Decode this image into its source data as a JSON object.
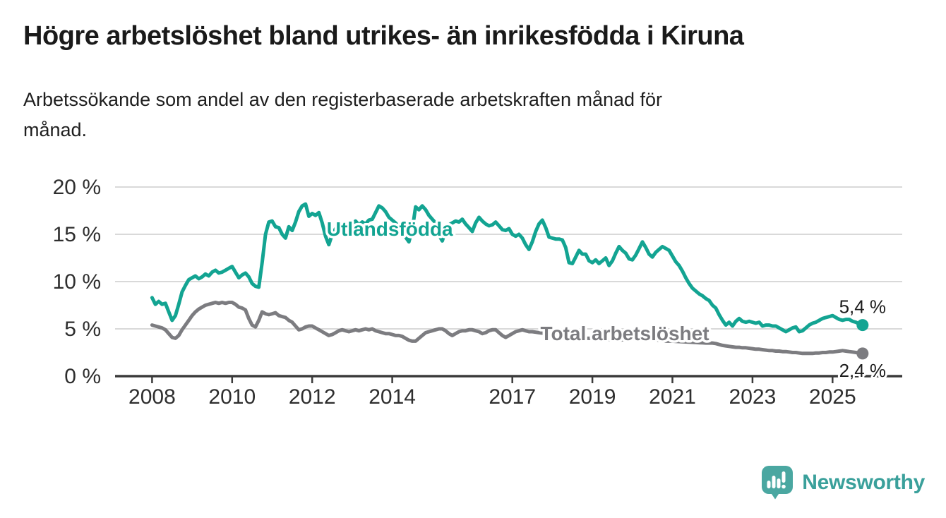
{
  "header": {
    "title": "Högre arbetslöshet bland utrikes- än inrikesfödda i Kiruna",
    "subtitle": "Arbetssökande som andel av den registerbaserade arbetskraften månad för månad."
  },
  "chart_data": {
    "type": "line",
    "unit": "%",
    "grid": true,
    "ylim": [
      0,
      20
    ],
    "y_ticks": [
      {
        "value": 0,
        "label": "0 %"
      },
      {
        "value": 5,
        "label": "5 %"
      },
      {
        "value": 10,
        "label": "10 %"
      },
      {
        "value": 15,
        "label": "15 %"
      },
      {
        "value": 20,
        "label": "20 %"
      }
    ],
    "x_ticks": [
      2008,
      2010,
      2012,
      2014,
      2017,
      2019,
      2021,
      2023,
      2025
    ],
    "x_start_year": 2008,
    "x_step_months": 1,
    "series": [
      {
        "id": "utlandsfodda",
        "name": "Utlandsfödda",
        "color": "#13a492",
        "end_label": "5,4 %",
        "end_value": 5.4,
        "label_anchor": {
          "year": 2013.94,
          "value": 15.6
        },
        "values": [
          8.3,
          7.6,
          7.9,
          7.6,
          7.7,
          6.8,
          5.9,
          6.4,
          7.6,
          8.9,
          9.6,
          10.2,
          10.4,
          10.6,
          10.3,
          10.5,
          10.8,
          10.6,
          11.0,
          11.2,
          10.9,
          11.0,
          11.2,
          11.4,
          11.6,
          11.0,
          10.4,
          10.7,
          10.9,
          10.5,
          9.8,
          9.5,
          9.4,
          12.0,
          15.0,
          16.3,
          16.4,
          15.8,
          15.7,
          15.0,
          14.6,
          15.8,
          15.4,
          16.3,
          17.4,
          18.0,
          18.2,
          16.9,
          17.2,
          17.0,
          17.3,
          16.2,
          14.8,
          13.9,
          15.0,
          15.6,
          15.3,
          15.8,
          16.2,
          15.9,
          16.1,
          16.4,
          16.0,
          16.3,
          16.1,
          16.5,
          16.6,
          17.3,
          18.0,
          17.8,
          17.4,
          16.8,
          16.5,
          16.2,
          15.8,
          15.3,
          14.7,
          14.2,
          15.5,
          17.9,
          17.6,
          18.0,
          17.6,
          17.0,
          16.6,
          16.2,
          14.9,
          14.3,
          15.4,
          16.0,
          16.2,
          16.4,
          16.3,
          16.6,
          16.1,
          15.7,
          15.3,
          16.2,
          16.8,
          16.4,
          16.1,
          15.9,
          16.0,
          16.3,
          15.9,
          15.5,
          15.4,
          15.6,
          15.0,
          14.8,
          15.0,
          14.6,
          13.9,
          13.4,
          14.2,
          15.3,
          16.1,
          16.5,
          15.7,
          14.7,
          14.6,
          14.5,
          14.5,
          14.4,
          13.6,
          12.0,
          11.9,
          12.6,
          13.3,
          12.9,
          12.9,
          12.2,
          12.0,
          12.3,
          11.9,
          12.2,
          12.5,
          11.7,
          12.2,
          13.0,
          13.7,
          13.3,
          13.0,
          12.4,
          12.3,
          12.8,
          13.5,
          14.2,
          13.6,
          12.9,
          12.6,
          13.1,
          13.4,
          13.7,
          13.5,
          13.3,
          12.7,
          12.1,
          11.7,
          11.1,
          10.4,
          9.8,
          9.3,
          9.0,
          8.7,
          8.5,
          8.2,
          8.0,
          7.5,
          7.2,
          6.5,
          5.9,
          5.4,
          5.7,
          5.3,
          5.8,
          6.1,
          5.8,
          5.7,
          5.8,
          5.7,
          5.6,
          5.7,
          5.3,
          5.4,
          5.4,
          5.3,
          5.3,
          5.1,
          4.9,
          4.7,
          4.9,
          5.1,
          5.2,
          4.7,
          4.8,
          5.1,
          5.4,
          5.6,
          5.7,
          5.9,
          6.1,
          6.2,
          6.3,
          6.4,
          6.2,
          6.0,
          5.9,
          6.0,
          6.0,
          5.8,
          5.7,
          5.5,
          5.4
        ]
      },
      {
        "id": "total",
        "name": "Total arbetslöshet",
        "color": "#7c7c80",
        "end_label": "2,4 %",
        "end_value": 2.4,
        "label_anchor": {
          "year": 2019.81,
          "value": 4.55
        },
        "values": [
          5.4,
          5.3,
          5.2,
          5.1,
          4.9,
          4.5,
          4.1,
          4.0,
          4.3,
          4.9,
          5.4,
          5.9,
          6.4,
          6.8,
          7.1,
          7.3,
          7.5,
          7.6,
          7.7,
          7.8,
          7.7,
          7.8,
          7.7,
          7.8,
          7.8,
          7.6,
          7.3,
          7.2,
          7.0,
          6.1,
          5.4,
          5.2,
          5.9,
          6.8,
          6.6,
          6.5,
          6.6,
          6.7,
          6.4,
          6.3,
          6.2,
          5.9,
          5.7,
          5.3,
          4.9,
          5.0,
          5.2,
          5.3,
          5.3,
          5.1,
          4.9,
          4.7,
          4.5,
          4.3,
          4.4,
          4.6,
          4.8,
          4.9,
          4.8,
          4.7,
          4.8,
          4.9,
          4.8,
          4.9,
          5.0,
          4.9,
          5.0,
          4.8,
          4.7,
          4.6,
          4.5,
          4.5,
          4.4,
          4.3,
          4.3,
          4.2,
          4.0,
          3.8,
          3.7,
          3.7,
          4.0,
          4.3,
          4.6,
          4.7,
          4.8,
          4.9,
          5.0,
          5.0,
          4.8,
          4.5,
          4.3,
          4.5,
          4.7,
          4.8,
          4.8,
          4.9,
          4.9,
          4.8,
          4.7,
          4.5,
          4.6,
          4.8,
          4.9,
          4.9,
          4.6,
          4.3,
          4.1,
          4.3,
          4.5,
          4.7,
          4.8,
          4.9,
          4.8,
          4.7,
          4.7,
          4.65,
          4.6,
          4.55,
          4.5,
          4.5,
          4.45,
          4.4,
          4.35,
          4.3,
          4.25,
          4.2,
          4.2,
          4.15,
          4.1,
          4.05,
          4.0,
          4.0,
          4.0,
          3.95,
          3.9,
          3.9,
          3.85,
          3.85,
          3.8,
          3.8,
          3.8,
          3.85,
          3.85,
          3.9,
          3.9,
          3.95,
          4.0,
          4.0,
          3.95,
          3.95,
          3.9,
          3.85,
          3.8,
          3.75,
          3.7,
          3.7,
          3.7,
          3.68,
          3.66,
          3.64,
          3.62,
          3.6,
          3.58,
          3.56,
          3.54,
          3.52,
          3.5,
          3.5,
          3.5,
          3.45,
          3.35,
          3.25,
          3.2,
          3.15,
          3.1,
          3.05,
          3.05,
          3.0,
          3.0,
          2.95,
          2.9,
          2.85,
          2.85,
          2.8,
          2.75,
          2.7,
          2.7,
          2.65,
          2.65,
          2.6,
          2.6,
          2.55,
          2.5,
          2.5,
          2.45,
          2.4,
          2.4,
          2.4,
          2.4,
          2.45,
          2.45,
          2.5,
          2.5,
          2.55,
          2.55,
          2.6,
          2.65,
          2.7,
          2.65,
          2.6,
          2.55,
          2.5,
          2.45,
          2.4
        ]
      }
    ],
    "colors": {
      "grid": "#d9d9d9",
      "axis": "#3b3b3b",
      "tick_text": "#2e2e2e",
      "end_label_text": "#1d1d1d"
    }
  },
  "branding": {
    "logo_text": "Newsworthy",
    "logo_color": "#3aa09b",
    "icon_color": "#4aa7a1"
  }
}
